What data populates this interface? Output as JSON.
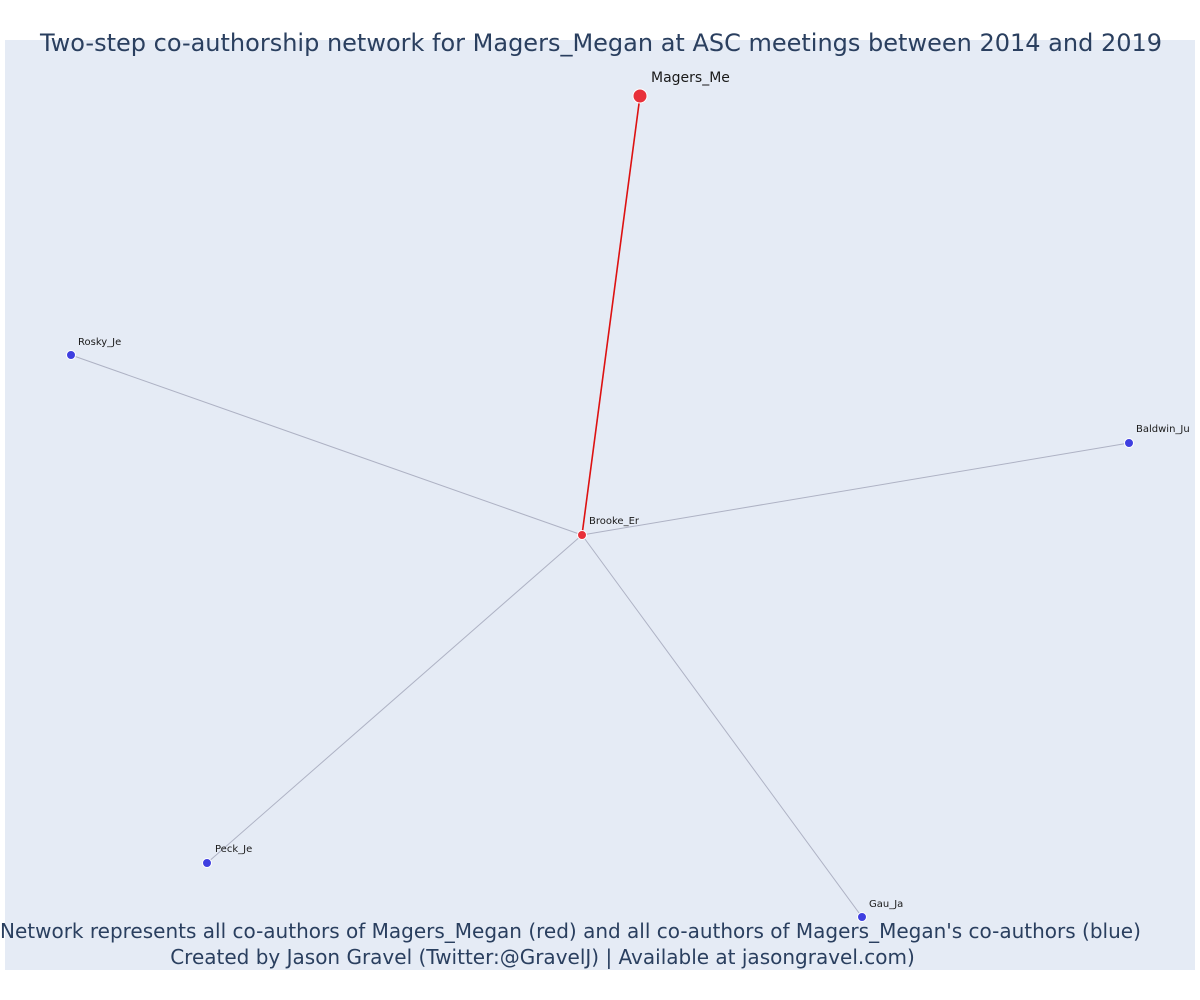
{
  "title": "Two-step co-authorship network for Magers_Megan at ASC meetings between 2014 and 2019",
  "caption": {
    "line1": "Network represents all co-authors of Magers_Megan (red) and all co-authors of Magers_Megan's co-authors (blue)",
    "line2": "Created by Jason Gravel (Twitter:@GravelJ) | Available at jasongravel.com)"
  },
  "colors": {
    "background": "#e5ebf5",
    "focal": "#e8303a",
    "coauthor": "#e8303a",
    "second_step": "#3f3fe0",
    "focal_edge": "#dd1111",
    "edge": "#aeb2c4",
    "text": "#2a3f5f"
  },
  "network": {
    "nodes": [
      {
        "id": "magers",
        "label": "Magers_Me",
        "group": "focal"
      },
      {
        "id": "brooke",
        "label": "Brooke_Er",
        "group": "coauthor"
      },
      {
        "id": "rosky",
        "label": "Rosky_Je",
        "group": "second_step"
      },
      {
        "id": "baldwin",
        "label": "Baldwin_Ju",
        "group": "second_step"
      },
      {
        "id": "peck",
        "label": "Peck_Je",
        "group": "second_step"
      },
      {
        "id": "gau",
        "label": "Gau_Ja",
        "group": "second_step"
      }
    ],
    "edges": [
      {
        "source": "magers",
        "target": "brooke",
        "type": "focal"
      },
      {
        "source": "brooke",
        "target": "rosky",
        "type": "second_step"
      },
      {
        "source": "brooke",
        "target": "baldwin",
        "type": "second_step"
      },
      {
        "source": "brooke",
        "target": "peck",
        "type": "second_step"
      },
      {
        "source": "brooke",
        "target": "gau",
        "type": "second_step"
      }
    ]
  }
}
